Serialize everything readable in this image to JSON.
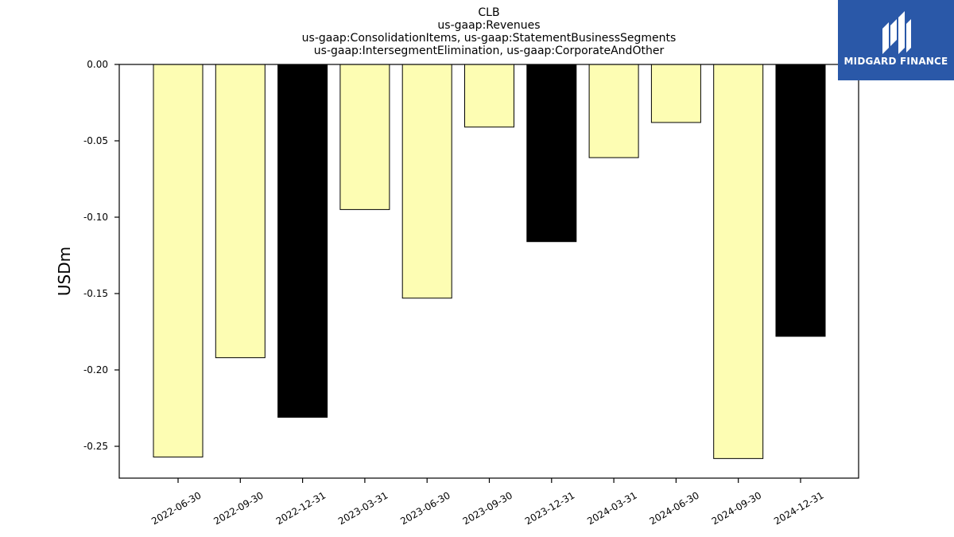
{
  "colors": {
    "yellow": "#fdfdb3",
    "black": "#000000",
    "brand": "#2a58a8"
  },
  "brand": {
    "name": "MIDGARD FINANCE",
    "icon": "midgard-logo-icon"
  },
  "chart_data": {
    "type": "bar",
    "title_lines": [
      "CLB",
      "us-gaap:Revenues",
      "us-gaap:ConsolidationItems, us-gaap:StatementBusinessSegments",
      "us-gaap:IntersegmentElimination, us-gaap:CorporateAndOther"
    ],
    "xlabel": "",
    "ylabel": "USDm",
    "ylim": [
      -0.27,
      0.0
    ],
    "yticks": [
      0.0,
      -0.05,
      -0.1,
      -0.15,
      -0.2,
      -0.25
    ],
    "ytick_labels": [
      "0.00",
      "-0.05",
      "-0.10",
      "-0.15",
      "-0.20",
      "-0.25"
    ],
    "grid": false,
    "categories": [
      "2022-06-30",
      "2022-09-30",
      "2022-12-31",
      "2023-03-31",
      "2023-06-30",
      "2023-09-30",
      "2023-12-31",
      "2024-03-31",
      "2024-06-30",
      "2024-09-30",
      "2024-12-31"
    ],
    "values": [
      -0.257,
      -0.192,
      -0.231,
      -0.095,
      -0.153,
      -0.041,
      -0.116,
      -0.061,
      -0.038,
      -0.258,
      -0.178
    ],
    "bar_colors": [
      "yellow",
      "yellow",
      "black",
      "yellow",
      "yellow",
      "yellow",
      "black",
      "yellow",
      "yellow",
      "yellow",
      "black"
    ]
  }
}
